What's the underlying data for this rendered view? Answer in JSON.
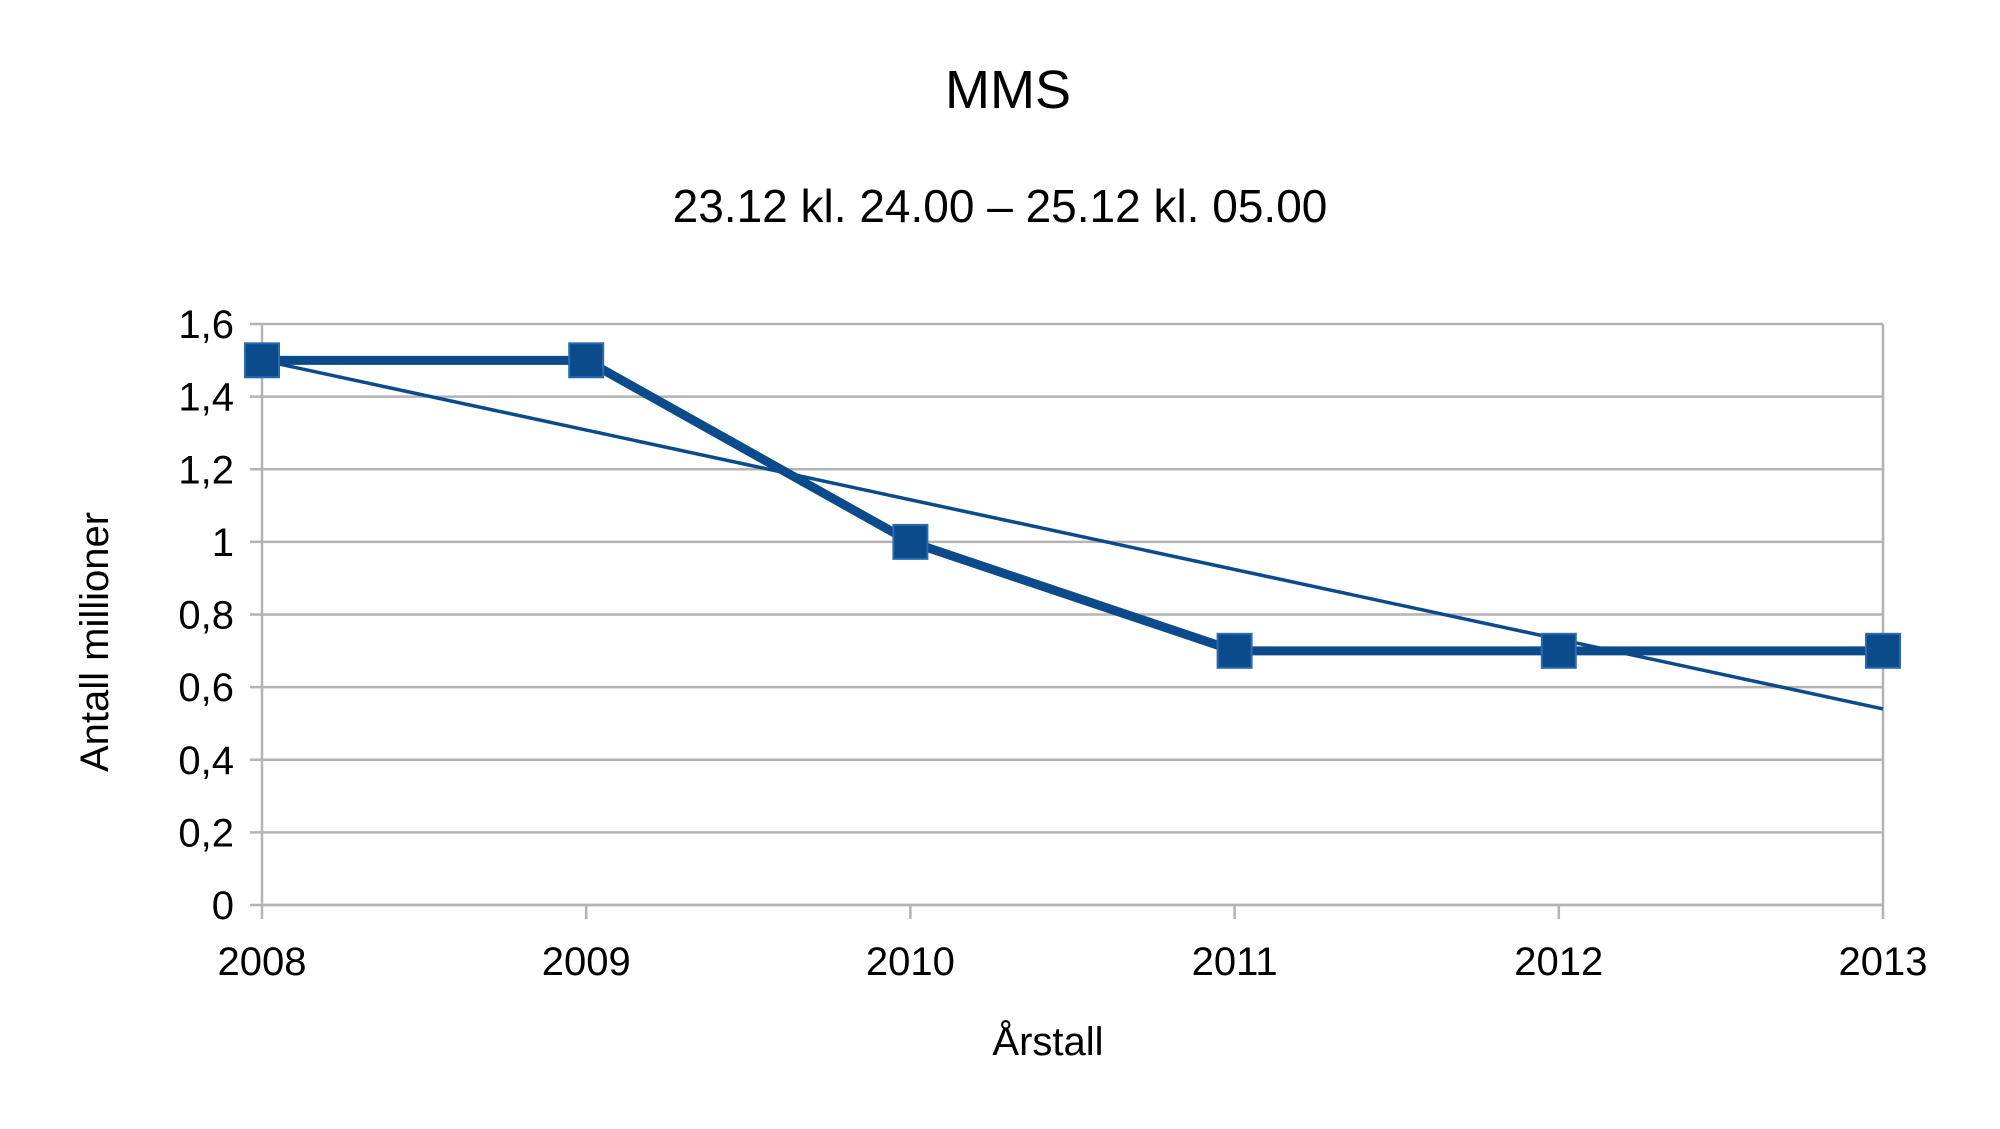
{
  "chart_data": {
    "type": "line",
    "title": "MMS",
    "subtitle": "23.12 kl. 24.00 – 25.12 kl. 05.00",
    "xlabel": "Årstall",
    "ylabel": "Antall millioner",
    "categories": [
      "2008",
      "2009",
      "2010",
      "2011",
      "2012",
      "2013"
    ],
    "series": [
      {
        "values": [
          1.5,
          1.5,
          1.0,
          0.7,
          0.7,
          0.7
        ],
        "color": "#0b4a8b",
        "marker": "square"
      }
    ],
    "trendline": {
      "type": "linear",
      "start": 1.5,
      "end": 0.54,
      "color": "#0b4a8b"
    },
    "y_ticks": [
      "0",
      "0,2",
      "0,4",
      "0,6",
      "0,8",
      "1",
      "1,2",
      "1,4",
      "1,6"
    ],
    "ylim": [
      0,
      1.6
    ],
    "grid": true,
    "legend": "none"
  }
}
